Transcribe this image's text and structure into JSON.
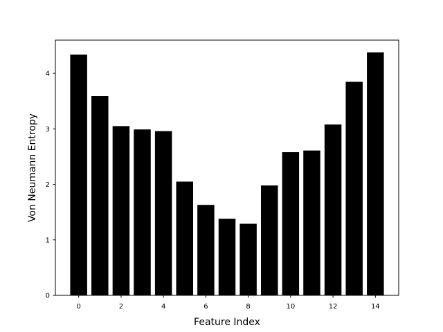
{
  "chart_data": {
    "type": "bar",
    "categories": [
      0,
      1,
      2,
      3,
      4,
      5,
      6,
      7,
      8,
      9,
      10,
      11,
      12,
      13,
      14
    ],
    "values": [
      4.34,
      3.59,
      3.05,
      2.99,
      2.96,
      2.05,
      1.63,
      1.38,
      1.29,
      1.98,
      2.58,
      2.61,
      3.08,
      3.85,
      4.38
    ],
    "xlabel": "Feature Index",
    "ylabel": "Von Neumann Entropy",
    "xticks": [
      "0",
      "2",
      "4",
      "6",
      "8",
      "10",
      "12",
      "14"
    ],
    "yticks": [
      "0",
      "1",
      "2",
      "3",
      "4"
    ],
    "xlim": [
      -1.1,
      15.1
    ],
    "ylim": [
      0,
      4.6
    ],
    "grid": false,
    "legend": "none",
    "colors": {
      "bar": "#000000",
      "axis": "#000000",
      "background": "#ffffff"
    }
  }
}
